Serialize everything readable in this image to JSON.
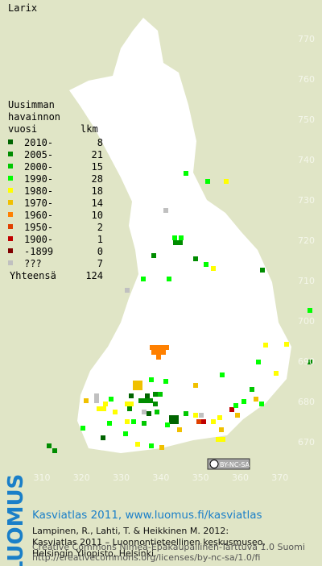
{
  "title": "Larix",
  "legend": {
    "heading": [
      "Uusimman",
      "havainnon",
      "vuosi"
    ],
    "count_heading": "lkm",
    "items": [
      {
        "label": "2010-",
        "count": 8,
        "color": "#006400"
      },
      {
        "label": "2005-",
        "count": 21,
        "color": "#008c00"
      },
      {
        "label": "2000-",
        "count": 15,
        "color": "#00c800"
      },
      {
        "label": "1990-",
        "count": 28,
        "color": "#00ff00"
      },
      {
        "label": "1980-",
        "count": 18,
        "color": "#ffff00"
      },
      {
        "label": "1970-",
        "count": 14,
        "color": "#f0c000"
      },
      {
        "label": "1960-",
        "count": 10,
        "color": "#ff8000"
      },
      {
        "label": "1950-",
        "count": 2,
        "color": "#e04000"
      },
      {
        "label": "1900-",
        "count": 1,
        "color": "#c00000"
      },
      {
        "label": "-1899",
        "count": 0,
        "color": "#800000"
      },
      {
        "label": "???",
        "count": 7,
        "color": "#c0c0c0"
      }
    ],
    "total_label": "Yhteensä",
    "total": 124
  },
  "grid": {
    "y_labels": [
      770,
      760,
      750,
      740,
      730,
      720,
      710,
      700,
      690,
      680,
      670
    ],
    "x_labels": [
      310,
      320,
      330,
      340,
      350,
      360,
      370
    ]
  },
  "badge": "BY-NC-SA",
  "footer": {
    "logo": "LUOMUS",
    "link": "Kasviatlas 2011, www.luomus.fi/kasviatlas",
    "citation": [
      "Lampinen, R., Lahti, T. & Heikkinen M. 2012:",
      "Kasviatlas 2011 – Luonnontieteellinen keskusmuseo,",
      "Helsingin Yliopisto, Helsinki."
    ],
    "license": [
      "Creative Commons Nimeä-Epäkaupallinen-Tarttuva 1.0 Suomi",
      "http://creativecommons.org/licenses/by-nc-sa/1.0/fi"
    ]
  }
}
